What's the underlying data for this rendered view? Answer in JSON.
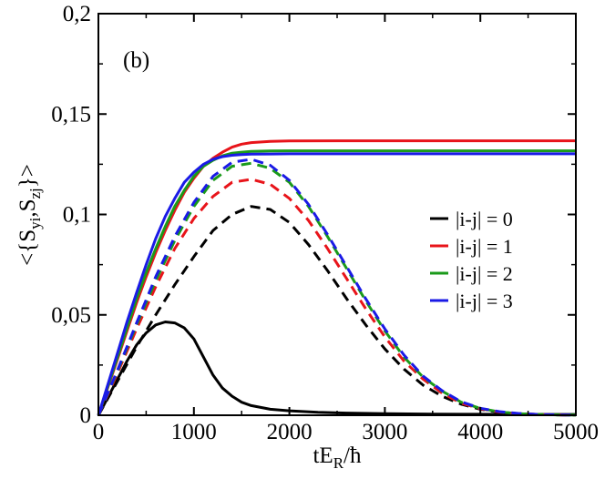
{
  "chart_data": {
    "type": "line",
    "panel_label": "(b)",
    "xlabel": {
      "main": "tE",
      "sub": "R",
      "tail": "/ħ"
    },
    "ylabel": {
      "open": "<{S",
      "sub1": "yi",
      "mid": ",S",
      "sub2": "zj",
      "close": "}>"
    },
    "xlim": [
      0,
      5000
    ],
    "ylim": [
      0,
      0.2
    ],
    "xticks": [
      0,
      1000,
      2000,
      3000,
      4000,
      5000
    ],
    "xtick_labels": [
      "0",
      "1000",
      "2000",
      "3000",
      "4000",
      "5000"
    ],
    "yticks": [
      0,
      0.05,
      0.1,
      0.15,
      0.2
    ],
    "ytick_labels": [
      "0",
      "0,05",
      "0,1",
      "0,15",
      "0,2"
    ],
    "legend_position": "center-right",
    "legend": [
      {
        "label": "|i-j| = 0",
        "color": "#000000"
      },
      {
        "label": "|i-j| = 1",
        "color": "#e8141a"
      },
      {
        "label": "|i-j| = 2",
        "color": "#1a9a1a"
      },
      {
        "label": "|i-j| = 3",
        "color": "#1a1ae6"
      }
    ],
    "series": [
      {
        "name": "|i-j| = 0 solid",
        "color": "#000000",
        "style": "solid",
        "x": [
          0,
          100,
          200,
          300,
          400,
          500,
          600,
          700,
          800,
          900,
          1000,
          1100,
          1200,
          1300,
          1400,
          1500,
          1600,
          1800,
          2000,
          2300,
          2600,
          3000,
          3500,
          4000,
          4500,
          5000
        ],
        "y": [
          0,
          0.009,
          0.018,
          0.027,
          0.035,
          0.041,
          0.045,
          0.0465,
          0.046,
          0.0435,
          0.038,
          0.029,
          0.02,
          0.0135,
          0.0095,
          0.0065,
          0.0048,
          0.003,
          0.0022,
          0.0015,
          0.0011,
          0.0008,
          0.0006,
          0.0005,
          0.0004,
          0.0004
        ]
      },
      {
        "name": "|i-j| = 0 dashed",
        "color": "#000000",
        "style": "dashed",
        "x": [
          0,
          200,
          400,
          600,
          800,
          1000,
          1200,
          1400,
          1600,
          1800,
          2000,
          2200,
          2400,
          2600,
          2800,
          3000,
          3200,
          3400,
          3600,
          3800,
          4000,
          4200,
          4400,
          4600,
          4800,
          5000
        ],
        "y": [
          0,
          0.017,
          0.034,
          0.05,
          0.065,
          0.079,
          0.092,
          0.1,
          0.104,
          0.1025,
          0.096,
          0.085,
          0.072,
          0.058,
          0.045,
          0.033,
          0.023,
          0.015,
          0.0095,
          0.0055,
          0.003,
          0.0015,
          0.0008,
          0.0004,
          0.0002,
          0.0001
        ]
      },
      {
        "name": "|i-j| = 1 solid",
        "color": "#e8141a",
        "style": "solid",
        "x": [
          0,
          100,
          200,
          300,
          400,
          500,
          600,
          700,
          800,
          900,
          1000,
          1100,
          1200,
          1300,
          1400,
          1500,
          1600,
          1800,
          2000,
          2500,
          3000,
          4000,
          5000
        ],
        "y": [
          0,
          0.014,
          0.028,
          0.042,
          0.056,
          0.069,
          0.081,
          0.092,
          0.102,
          0.111,
          0.118,
          0.124,
          0.128,
          0.131,
          0.1335,
          0.135,
          0.1358,
          0.1364,
          0.1366,
          0.1367,
          0.1367,
          0.1367,
          0.1367
        ]
      },
      {
        "name": "|i-j| = 1 dashed",
        "color": "#e8141a",
        "style": "dashed",
        "x": [
          0,
          200,
          400,
          600,
          800,
          1000,
          1200,
          1400,
          1600,
          1800,
          2000,
          2200,
          2400,
          2600,
          2800,
          3000,
          3200,
          3400,
          3600,
          3800,
          4000,
          4200,
          4400,
          4600,
          4800,
          5000
        ],
        "y": [
          0,
          0.021,
          0.043,
          0.064,
          0.083,
          0.098,
          0.109,
          0.116,
          0.1175,
          0.115,
          0.108,
          0.097,
          0.083,
          0.068,
          0.053,
          0.039,
          0.027,
          0.018,
          0.011,
          0.006,
          0.0032,
          0.0016,
          0.0008,
          0.0004,
          0.0002,
          0.0001
        ]
      },
      {
        "name": "|i-j| = 2 solid",
        "color": "#1a9a1a",
        "style": "solid",
        "x": [
          0,
          100,
          200,
          300,
          400,
          500,
          600,
          700,
          800,
          900,
          1000,
          1100,
          1200,
          1300,
          1400,
          1500,
          1600,
          1800,
          2000,
          2500,
          3000,
          4000,
          5000
        ],
        "y": [
          0,
          0.0145,
          0.029,
          0.0435,
          0.058,
          0.071,
          0.083,
          0.094,
          0.104,
          0.112,
          0.119,
          0.124,
          0.127,
          0.1292,
          0.1305,
          0.131,
          0.1314,
          0.1316,
          0.1317,
          0.1317,
          0.1317,
          0.1317,
          0.1317
        ]
      },
      {
        "name": "|i-j| = 2 dashed",
        "color": "#1a9a1a",
        "style": "dashed",
        "x": [
          0,
          200,
          400,
          600,
          800,
          1000,
          1200,
          1400,
          1600,
          1800,
          2000,
          2200,
          2400,
          2600,
          2800,
          3000,
          3200,
          3400,
          3600,
          3800,
          4000,
          4200,
          4400,
          4600,
          4800,
          5000
        ],
        "y": [
          0,
          0.022,
          0.045,
          0.067,
          0.087,
          0.104,
          0.117,
          0.124,
          0.1255,
          0.123,
          0.116,
          0.104,
          0.089,
          0.073,
          0.057,
          0.042,
          0.029,
          0.019,
          0.012,
          0.0065,
          0.0034,
          0.0017,
          0.0008,
          0.0004,
          0.0002,
          0.0001
        ]
      },
      {
        "name": "|i-j| = 3 solid",
        "color": "#1a1ae6",
        "style": "solid",
        "x": [
          0,
          100,
          200,
          300,
          400,
          500,
          600,
          700,
          800,
          900,
          1000,
          1100,
          1200,
          1300,
          1400,
          1500,
          1600,
          1800,
          2000,
          2500,
          3000,
          4000,
          5000
        ],
        "y": [
          0,
          0.0155,
          0.031,
          0.0465,
          0.061,
          0.075,
          0.088,
          0.099,
          0.108,
          0.116,
          0.121,
          0.125,
          0.1275,
          0.1288,
          0.1295,
          0.1298,
          0.13,
          0.1301,
          0.1302,
          0.1302,
          0.1302,
          0.1302,
          0.1302
        ]
      },
      {
        "name": "|i-j| = 3 dashed",
        "color": "#1a1ae6",
        "style": "dashed",
        "x": [
          0,
          200,
          400,
          600,
          800,
          1000,
          1200,
          1400,
          1600,
          1800,
          2000,
          2200,
          2400,
          2600,
          2800,
          3000,
          3200,
          3400,
          3600,
          3800,
          4000,
          4200,
          4400,
          4600,
          4800,
          5000
        ],
        "y": [
          0,
          0.0225,
          0.046,
          0.069,
          0.089,
          0.106,
          0.119,
          0.126,
          0.1275,
          0.1245,
          0.117,
          0.105,
          0.09,
          0.074,
          0.058,
          0.043,
          0.03,
          0.0195,
          0.0122,
          0.0067,
          0.0035,
          0.0018,
          0.0009,
          0.0004,
          0.0002,
          0.0001
        ]
      }
    ]
  }
}
